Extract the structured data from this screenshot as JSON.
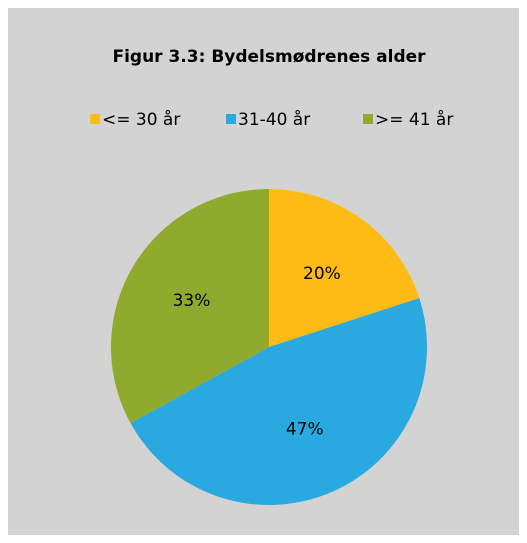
{
  "chart_data": {
    "type": "pie",
    "title": "Figur 3.3: Bydelsmødrenes alder",
    "categories": [
      "<= 30 år",
      "31-40 år",
      ">= 41 år"
    ],
    "values": [
      20,
      47,
      33
    ],
    "value_labels": [
      "20%",
      "47%",
      "33%"
    ],
    "colors": [
      "#fdbb13",
      "#29a9e0",
      "#8faa2c"
    ],
    "legend": "top"
  }
}
